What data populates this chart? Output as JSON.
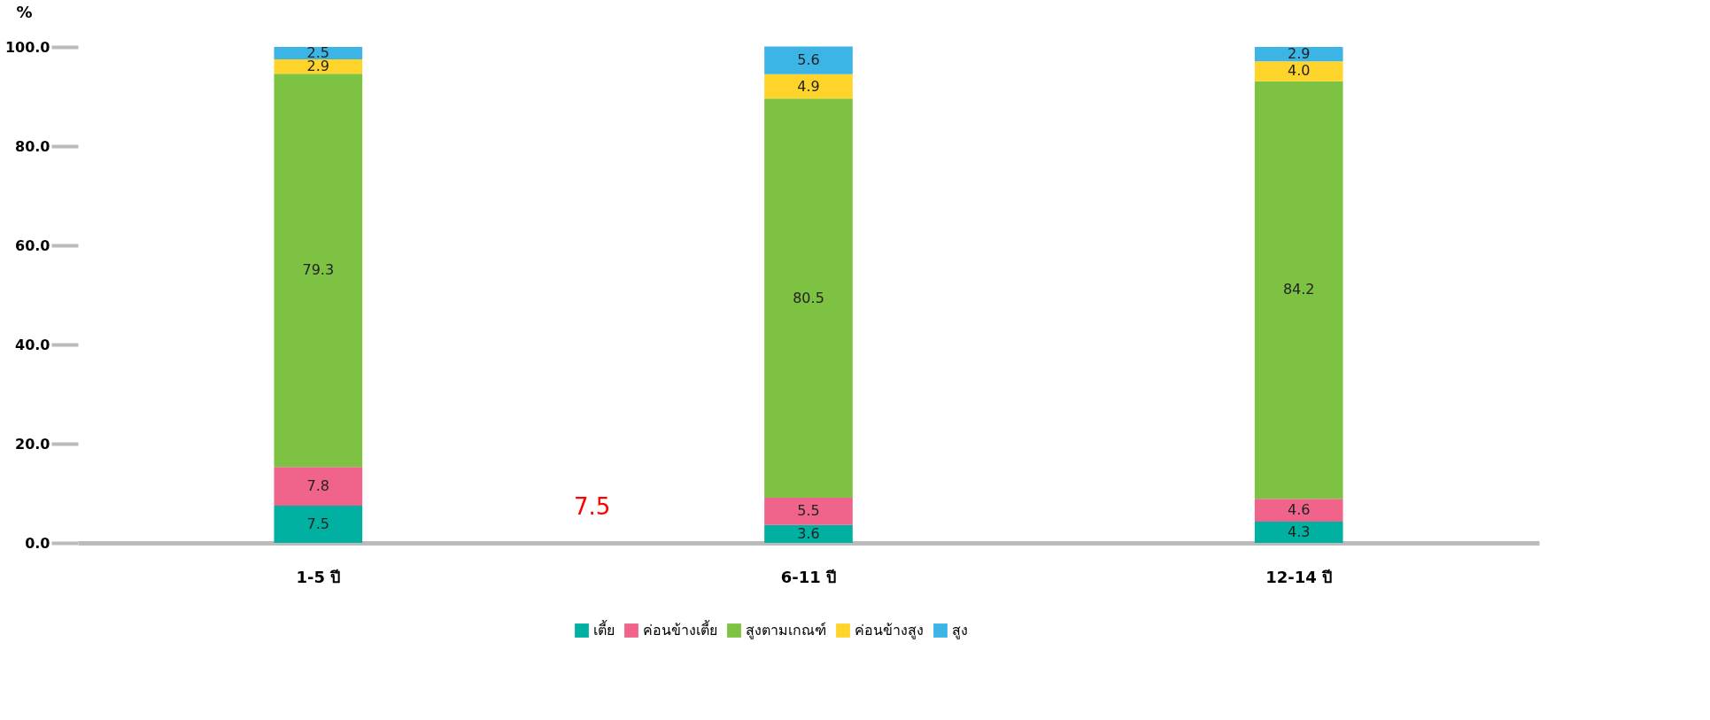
{
  "chart_data": {
    "type": "bar",
    "stacked": true,
    "ylabel": "%",
    "categories": [
      "1-5 ปี",
      "6-11 ปี",
      "12-14 ปี"
    ],
    "series": [
      {
        "name": "เตี้ย",
        "color": "#00b0a0",
        "values": [
          7.5,
          3.6,
          4.3
        ],
        "value_labels": [
          "7.5",
          "3.6",
          "4.3"
        ]
      },
      {
        "name": "ค่อนข้างเตี้ย",
        "color": "#f0648c",
        "values": [
          7.8,
          5.5,
          4.6
        ],
        "value_labels": [
          "7.8",
          "5.5",
          "4.6"
        ]
      },
      {
        "name": "สูงตามเกณฑ์",
        "color": "#7dc242",
        "values": [
          79.3,
          80.5,
          84.2
        ],
        "value_labels": [
          "79.3",
          "80.5",
          "84.2"
        ]
      },
      {
        "name": "ค่อนข้างสูง",
        "color": "#ffd42a",
        "values": [
          2.9,
          4.9,
          4.0
        ],
        "value_labels": [
          "2.9",
          "4.9",
          "4.0"
        ]
      },
      {
        "name": "สูง",
        "color": "#3cb4e6",
        "values": [
          2.5,
          5.6,
          2.9
        ],
        "value_labels": [
          "2.5",
          "5.6",
          "2.9"
        ]
      }
    ],
    "ylim": [
      0,
      100
    ],
    "yticks": [
      {
        "value": 0,
        "label": "0.0"
      },
      {
        "value": 20,
        "label": "20.0"
      },
      {
        "value": 40,
        "label": "40.0"
      },
      {
        "value": 60,
        "label": "60.0"
      },
      {
        "value": 80,
        "label": "80.0"
      },
      {
        "value": 100,
        "label": "100.0"
      }
    ],
    "grid": false,
    "legend": "bottom",
    "annotations": [
      "7.5"
    ]
  }
}
